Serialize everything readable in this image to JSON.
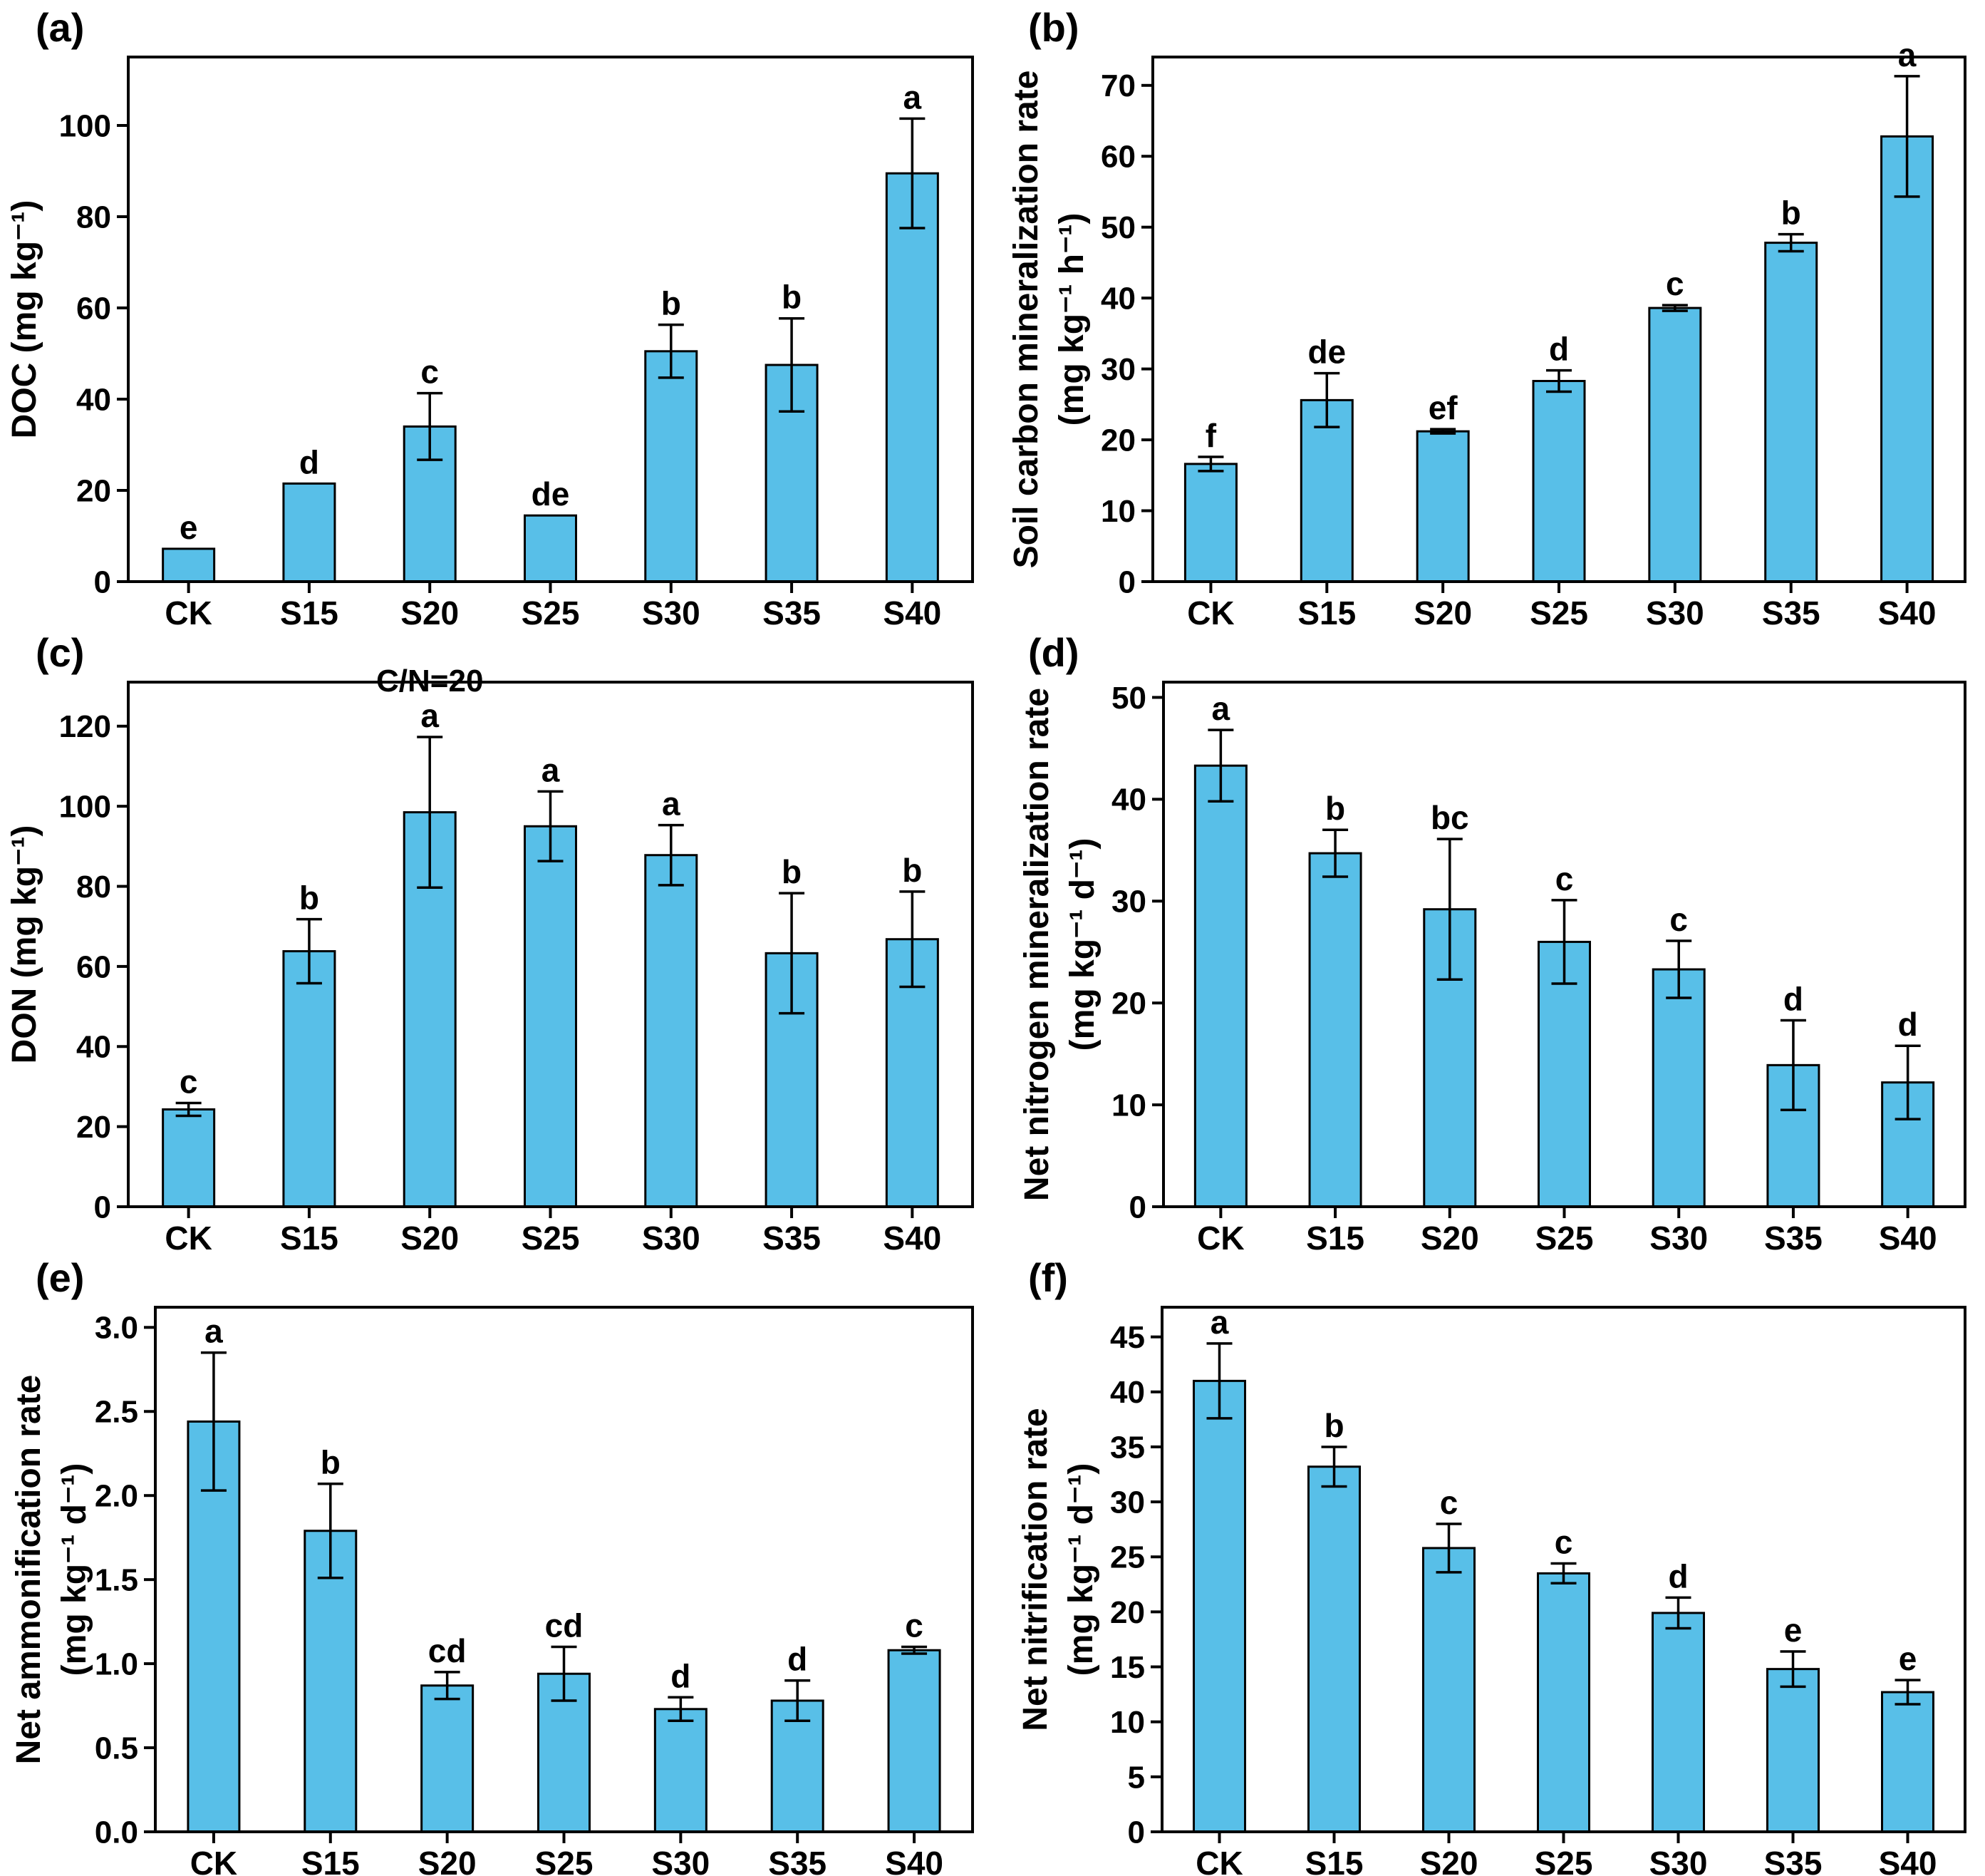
{
  "styles": {
    "bar_fill": "#58BFE8",
    "bar_stroke": "#000000",
    "axis_color": "#000000",
    "text_color": "#000000",
    "background": "#ffffff"
  },
  "categories": [
    "CK",
    "S15",
    "S20",
    "S25",
    "S30",
    "S35",
    "S40"
  ],
  "chart_data": [
    {
      "type": "bar",
      "panel_label": "(a)",
      "ylabel_lines": [
        "DOC (mg kg⁻¹)"
      ],
      "xlabel": "",
      "categories": [
        "CK",
        "S15",
        "S20",
        "S25",
        "S30",
        "S35",
        "S40"
      ],
      "values": [
        7.2,
        21.5,
        34.0,
        14.5,
        50.5,
        47.5,
        89.5
      ],
      "errors": [
        0,
        0,
        7.3,
        0,
        5.8,
        10.2,
        12.0
      ],
      "letters": [
        "e",
        "d",
        "c",
        "de",
        "b",
        "b",
        "a"
      ],
      "yticks": [
        0,
        20,
        40,
        60,
        80,
        100
      ],
      "ytick_labels": [
        "0",
        "20",
        "40",
        "60",
        "80",
        "100"
      ],
      "ymax": 115,
      "grid": false,
      "legend": "none",
      "margin_left": 180
    },
    {
      "type": "bar",
      "panel_label": "(b)",
      "ylabel_lines": [
        "Soil carbon mineralization rate",
        "(mg kg⁻¹ h⁻¹)"
      ],
      "xlabel": "",
      "categories": [
        "CK",
        "S15",
        "S20",
        "S25",
        "S30",
        "S35",
        "S40"
      ],
      "values": [
        16.6,
        25.6,
        21.2,
        28.3,
        38.6,
        47.8,
        62.8
      ],
      "errors": [
        1.0,
        3.8,
        0.3,
        1.5,
        0.4,
        1.2,
        8.5
      ],
      "letters": [
        "f",
        "de",
        "ef",
        "d",
        "c",
        "b",
        "a"
      ],
      "yticks": [
        0,
        10,
        20,
        30,
        40,
        50,
        60,
        70
      ],
      "ytick_labels": [
        "0",
        "10",
        "20",
        "30",
        "40",
        "50",
        "60",
        "70"
      ],
      "ymax": 74,
      "grid": false,
      "legend": "none",
      "margin_left": 225
    },
    {
      "type": "bar",
      "panel_label": "(c)",
      "ylabel_lines": [
        "DON (mg kg⁻¹)"
      ],
      "xlabel": "",
      "categories": [
        "CK",
        "S15",
        "S20",
        "S25",
        "S30",
        "S35",
        "S40"
      ],
      "values": [
        24.3,
        63.8,
        98.5,
        95.0,
        87.8,
        63.3,
        66.8
      ],
      "errors": [
        1.6,
        8.0,
        18.8,
        8.7,
        7.5,
        15.0,
        11.9
      ],
      "letters": [
        "c",
        "b",
        "a",
        "a",
        "a",
        "b",
        "b"
      ],
      "annotation": {
        "text": "C/N=20",
        "category": "S20"
      },
      "yticks": [
        0,
        20,
        40,
        60,
        80,
        100,
        120
      ],
      "ytick_labels": [
        "0",
        "20",
        "40",
        "60",
        "80",
        "100",
        "120"
      ],
      "ymax": 131,
      "grid": false,
      "legend": "none",
      "margin_left": 180
    },
    {
      "type": "bar",
      "panel_label": "(d)",
      "ylabel_lines": [
        "Net nitrogen mineralization rate",
        "(mg kg⁻¹ d⁻¹)"
      ],
      "xlabel": "",
      "categories": [
        "CK",
        "S15",
        "S20",
        "S25",
        "S30",
        "S35",
        "S40"
      ],
      "values": [
        43.3,
        34.7,
        29.2,
        26.0,
        23.3,
        13.9,
        12.2
      ],
      "errors": [
        3.5,
        2.3,
        6.9,
        4.1,
        2.8,
        4.4,
        3.6
      ],
      "letters": [
        "a",
        "b",
        "bc",
        "c",
        "c",
        "d",
        "d"
      ],
      "yticks": [
        0,
        10,
        20,
        30,
        40,
        50
      ],
      "ytick_labels": [
        "0",
        "10",
        "20",
        "30",
        "40",
        "50"
      ],
      "ymax": 51.5,
      "grid": false,
      "legend": "none",
      "margin_left": 240
    },
    {
      "type": "bar",
      "panel_label": "(e)",
      "ylabel_lines": [
        "Net ammonification rate",
        "(mg kg⁻¹ d⁻¹)"
      ],
      "xlabel": "",
      "categories": [
        "CK",
        "S15",
        "S20",
        "S25",
        "S30",
        "S35",
        "S40"
      ],
      "values": [
        2.44,
        1.79,
        0.87,
        0.94,
        0.73,
        0.78,
        1.08
      ],
      "errors": [
        0.41,
        0.28,
        0.08,
        0.16,
        0.07,
        0.12,
        0.02
      ],
      "letters": [
        "a",
        "b",
        "cd",
        "cd",
        "d",
        "d",
        "c"
      ],
      "yticks": [
        0,
        0.5,
        1.0,
        1.5,
        2.0,
        2.5,
        3.0
      ],
      "ytick_labels": [
        "0.0",
        "0.5",
        "1.0",
        "1.5",
        "2.0",
        "2.5",
        "3.0"
      ],
      "ymax": 3.12,
      "grid": false,
      "legend": "none",
      "margin_left": 218
    },
    {
      "type": "bar",
      "panel_label": "(f)",
      "ylabel_lines": [
        "Net nitrification rate",
        "(mg kg⁻¹ d⁻¹)"
      ],
      "xlabel": "",
      "categories": [
        "CK",
        "S15",
        "S20",
        "S25",
        "S30",
        "S35",
        "S40"
      ],
      "values": [
        41.0,
        33.2,
        25.8,
        23.5,
        19.9,
        14.8,
        12.7
      ],
      "errors": [
        3.4,
        1.8,
        2.2,
        0.9,
        1.4,
        1.6,
        1.1
      ],
      "letters": [
        "a",
        "b",
        "c",
        "c",
        "d",
        "e",
        "e"
      ],
      "yticks": [
        0,
        5,
        10,
        15,
        20,
        25,
        30,
        35,
        40,
        45
      ],
      "ytick_labels": [
        "0",
        "5",
        "10",
        "15",
        "20",
        "25",
        "30",
        "35",
        "40",
        "45"
      ],
      "ymax": 47.7,
      "grid": false,
      "legend": "none",
      "margin_left": 238
    }
  ]
}
